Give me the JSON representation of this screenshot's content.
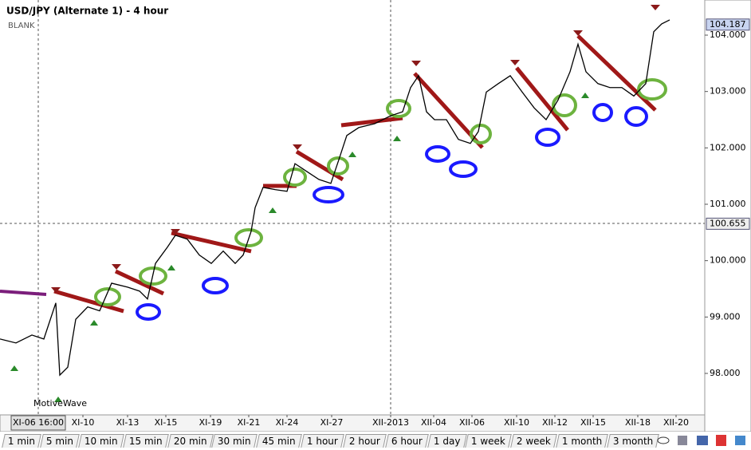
{
  "chart_data": {
    "type": "line",
    "title": "USD/JPY (Alternate 1) - 4 hour",
    "subtitle": "BLANK",
    "watermark": "MotiveWave",
    "crosshair_label": "XI-06 16:00",
    "x": [
      0,
      5,
      10,
      13.75,
      17.5,
      18.75,
      21.25,
      23.75,
      27.5,
      31.25,
      35,
      40,
      43.75,
      46.25,
      48.75,
      52.5,
      55,
      58.75,
      62.5,
      66.25,
      70,
      73.75,
      76.25,
      78.75,
      80,
      82.5,
      86.25,
      90,
      92.5,
      96.25,
      100,
      103.75,
      106.25,
      108.75,
      112.5,
      117.5,
      122.5,
      126.25,
      128.75,
      131.25,
      133.75,
      136.25,
      140,
      143.75,
      147.5,
      150,
      152.5,
      156.25,
      160,
      163.75,
      167.5,
      171.25,
      175,
      178.75,
      181.25,
      183.75,
      187.5,
      191.25,
      195,
      198.75,
      202.5,
      205,
      207.5,
      210
    ],
    "series": [
      {
        "name": "USD/JPY",
        "color": "#000000",
        "values": [
          98.61,
          98.54,
          98.68,
          98.61,
          99.25,
          97.97,
          98.11,
          98.96,
          99.18,
          99.11,
          99.6,
          99.53,
          99.46,
          99.32,
          99.95,
          100.24,
          100.45,
          100.38,
          100.1,
          99.95,
          100.17,
          99.95,
          100.1,
          100.52,
          100.94,
          101.3,
          101.26,
          101.23,
          101.72,
          101.58,
          101.44,
          101.37,
          101.79,
          102.22,
          102.36,
          102.43,
          102.57,
          102.64,
          103.07,
          103.28,
          102.64,
          102.5,
          102.5,
          102.15,
          102.08,
          102.29,
          102.99,
          103.14,
          103.28,
          102.99,
          102.71,
          102.5,
          102.85,
          103.35,
          103.84,
          103.35,
          103.14,
          103.07,
          103.07,
          102.92,
          103.14,
          104.06,
          104.2,
          104.27
        ]
      }
    ],
    "xlim": [
      0,
      221
    ],
    "xticks": [
      {
        "value": 26,
        "label": "XI-10"
      },
      {
        "value": 40,
        "label": "XI-13"
      },
      {
        "value": 52,
        "label": "XI-15"
      },
      {
        "value": 66,
        "label": "XI-19"
      },
      {
        "value": 78,
        "label": "XI-21"
      },
      {
        "value": 90,
        "label": "XI-24"
      },
      {
        "value": 104,
        "label": "XI-27"
      },
      {
        "value": 122.5,
        "label": "XII-2013"
      },
      {
        "value": 136,
        "label": "XII-04"
      },
      {
        "value": 148,
        "label": "XII-06"
      },
      {
        "value": 162,
        "label": "XII-10"
      },
      {
        "value": 174,
        "label": "XII-12"
      },
      {
        "value": 186,
        "label": "XII-15"
      },
      {
        "value": 200,
        "label": "XII-18"
      },
      {
        "value": 212,
        "label": "XII-20"
      }
    ],
    "ylim": [
      97.264,
      104.623
    ],
    "yticks": [
      {
        "value": 98,
        "label": "98.000"
      },
      {
        "value": 99,
        "label": "99.000"
      },
      {
        "value": 100,
        "label": "100.000"
      },
      {
        "value": 101,
        "label": "101.000"
      },
      {
        "value": 102,
        "label": "102.000"
      },
      {
        "value": 103,
        "label": "103.000"
      },
      {
        "value": 104,
        "label": "104.000"
      }
    ],
    "price_tags": [
      {
        "value": 104.187,
        "label": "104.187"
      },
      {
        "value": 100.655,
        "label": "100.655"
      }
    ]
  },
  "toolbar": {
    "tabs": [
      "1 min",
      "5 min",
      "10 min",
      "15 min",
      "20 min",
      "30 min",
      "45 min",
      "1 hour",
      "2 hour",
      "6 hour",
      "1 day",
      "1 week",
      "2 week",
      "1 month",
      "3 month"
    ]
  }
}
